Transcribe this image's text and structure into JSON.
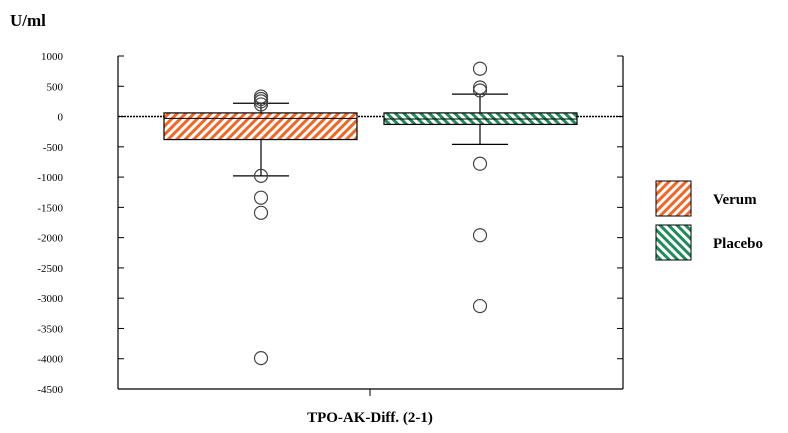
{
  "chart_data": {
    "type": "box",
    "unit_label": "U/ml",
    "xlabel": "TPO-AK-Diff. (2-1)",
    "ylim": [
      -4500,
      1000
    ],
    "yticks": [
      1000,
      500,
      0,
      -500,
      -1000,
      -1500,
      -2000,
      -2500,
      -3000,
      -3500,
      -4000,
      -4500
    ],
    "reference_line": 0,
    "series": [
      {
        "name": "Verum",
        "color": "#f26522",
        "hatch": "diagonal-right",
        "q1": -380,
        "median": -30,
        "q3": 60,
        "whisker_high": 220,
        "whisker_low": -980,
        "outliers": [
          330,
          290,
          250,
          200,
          -980,
          -1340,
          -1590,
          -3990
        ]
      },
      {
        "name": "Placebo",
        "color": "#1f8a5a",
        "hatch": "diagonal-left",
        "q1": -130,
        "median": -40,
        "q3": 60,
        "whisker_high": 370,
        "whisker_low": -460,
        "outliers": [
          790,
          480,
          430,
          -780,
          -1960,
          -3130
        ]
      }
    ],
    "legend_position": "right"
  }
}
